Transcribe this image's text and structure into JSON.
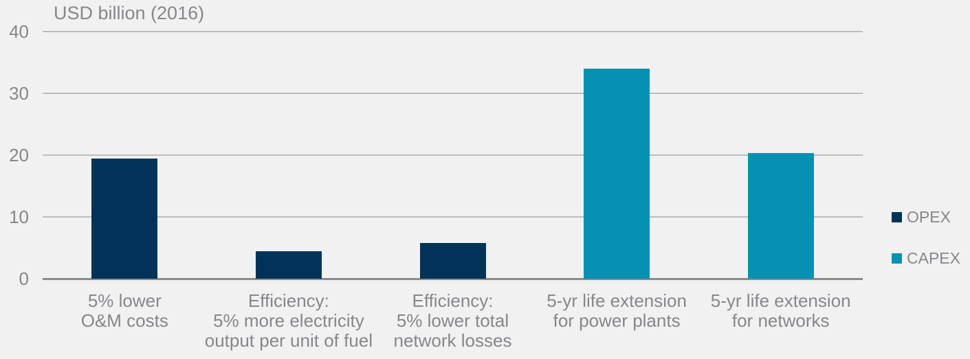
{
  "title": "USD billion (2016)",
  "colors": {
    "background": "#f1f1f2",
    "gridline": "#bbbcbe",
    "axis_line": "#8a8b8e",
    "text": "#85878a",
    "opex": "#003357",
    "capex": "#0690b2"
  },
  "legend": {
    "position": "right",
    "items": [
      {
        "label": "OPEX",
        "color": "#003357"
      },
      {
        "label": "CAPEX",
        "color": "#0690b2"
      }
    ]
  },
  "chart_data": {
    "type": "bar",
    "title": "USD billion (2016)",
    "xlabel": "",
    "ylabel": "USD billion (2016)",
    "ylim": [
      0,
      40
    ],
    "yticks": [
      0,
      10,
      20,
      30,
      40
    ],
    "grid": true,
    "legend_position": "right",
    "categories": [
      "5% lower\nO&M costs",
      "Efficiency:\n5% more electricity\noutput per unit of fuel",
      "Efficiency:\n5% lower total\nnetwork losses",
      "5-yr life extension\nfor power plants",
      "5-yr life extension\nfor networks"
    ],
    "bars": [
      {
        "series": "OPEX",
        "value": 19.5
      },
      {
        "series": "OPEX",
        "value": 4.5
      },
      {
        "series": "OPEX",
        "value": 5.8
      },
      {
        "series": "CAPEX",
        "value": 34
      },
      {
        "series": "CAPEX",
        "value": 20.3
      }
    ],
    "series": [
      {
        "name": "OPEX",
        "color": "#003357",
        "values": [
          19.5,
          4.5,
          5.8,
          null,
          null
        ]
      },
      {
        "name": "CAPEX",
        "color": "#0690b2",
        "values": [
          null,
          null,
          null,
          34,
          20.3
        ]
      }
    ]
  }
}
